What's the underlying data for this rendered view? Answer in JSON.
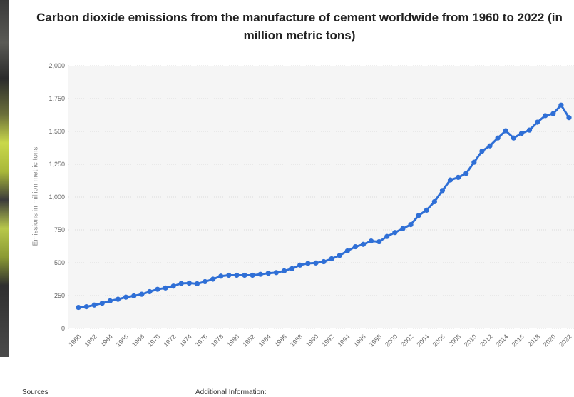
{
  "chart_data": {
    "type": "line",
    "title": "Carbon dioxide emissions from the manufacture of cement worldwide from 1960 to 2022 (in million metric tons)",
    "xlabel": "",
    "ylabel": "Emissions in million metric tons",
    "ylim": [
      0,
      2000
    ],
    "yticks": [
      0,
      250,
      500,
      750,
      1000,
      1250,
      1500,
      1750,
      2000
    ],
    "ytick_labels": [
      "0",
      "250",
      "500",
      "750",
      "1,000",
      "1,250",
      "1,500",
      "1,750",
      "2,000"
    ],
    "xtick_labels": [
      "1960",
      "1962",
      "1964",
      "1966",
      "1968",
      "1970",
      "1972",
      "1974",
      "1976",
      "1978",
      "1980",
      "1982",
      "1984",
      "1986",
      "1988",
      "1990",
      "1992",
      "1994",
      "1996",
      "1998",
      "2000",
      "2002",
      "2004",
      "2006",
      "2008",
      "2010",
      "2012",
      "2014",
      "2016",
      "2018",
      "2020",
      "2022"
    ],
    "grid": true,
    "color": "#2f6fd6",
    "x": [
      1960,
      1961,
      1962,
      1963,
      1964,
      1965,
      1966,
      1967,
      1968,
      1969,
      1970,
      1971,
      1972,
      1973,
      1974,
      1975,
      1976,
      1977,
      1978,
      1979,
      1980,
      1981,
      1982,
      1983,
      1984,
      1985,
      1986,
      1987,
      1988,
      1989,
      1990,
      1991,
      1992,
      1993,
      1994,
      1995,
      1996,
      1997,
      1998,
      1999,
      2000,
      2001,
      2002,
      2003,
      2004,
      2005,
      2006,
      2007,
      2008,
      2009,
      2010,
      2011,
      2012,
      2013,
      2014,
      2015,
      2016,
      2017,
      2018,
      2019,
      2020,
      2021,
      2022
    ],
    "values": [
      160,
      165,
      178,
      192,
      210,
      222,
      238,
      248,
      260,
      280,
      298,
      308,
      322,
      343,
      345,
      340,
      356,
      375,
      398,
      405,
      405,
      405,
      405,
      412,
      420,
      425,
      438,
      455,
      482,
      495,
      498,
      508,
      530,
      555,
      590,
      622,
      640,
      665,
      660,
      700,
      730,
      760,
      790,
      860,
      900,
      965,
      1050,
      1130,
      1150,
      1180,
      1265,
      1350,
      1390,
      1450,
      1505,
      1450,
      1485,
      1510,
      1570,
      1620,
      1635,
      1700,
      1605
    ]
  },
  "footer": {
    "sources": "Sources",
    "additional_info": "Additional Information:"
  }
}
